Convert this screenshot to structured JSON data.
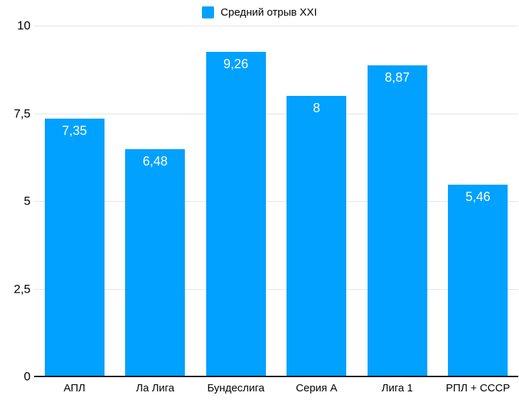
{
  "legend": {
    "label": "Средний отрыв XXI",
    "swatch_color": "#00a1ff"
  },
  "chart_data": {
    "type": "bar",
    "title": "",
    "xlabel": "",
    "ylabel": "",
    "categories": [
      "АПЛ",
      "Ла Лига",
      "Бундеслига",
      "Серия А",
      "Лига 1",
      "РПЛ + СССР"
    ],
    "series": [
      {
        "name": "Средний отрыв XXI",
        "values": [
          7.35,
          6.48,
          9.26,
          8,
          8.87,
          5.46
        ],
        "value_labels": [
          "7,35",
          "6,48",
          "9,26",
          "8",
          "8,87",
          "5,46"
        ]
      }
    ],
    "ylim": [
      0,
      10
    ],
    "yticks": [
      0,
      2.5,
      5,
      7.5,
      10
    ],
    "ytick_labels": [
      "0",
      "2,5",
      "5",
      "7,5",
      "10"
    ],
    "grid": true,
    "legend_position": "top-center",
    "colors": {
      "bar": "#00a1ff",
      "value_label": "#ffffff",
      "gridline": "#e4e4e4",
      "axis_line": "#111111",
      "tick_text": "#000000"
    }
  }
}
